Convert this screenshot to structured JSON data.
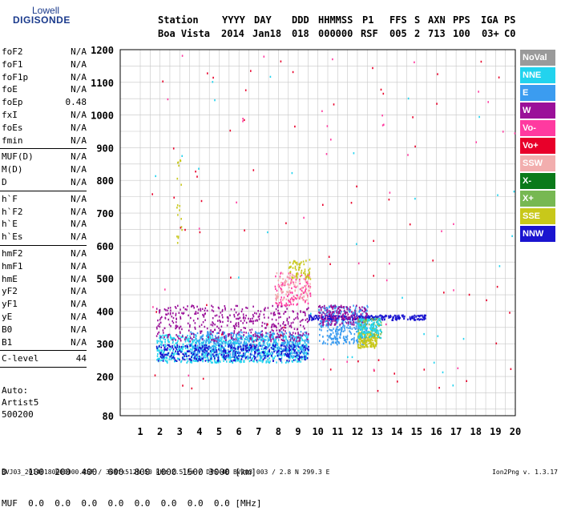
{
  "logo": {
    "line1": "Lowell",
    "line2": "DIGISONDE"
  },
  "header": {
    "labels": [
      "Station",
      "YYYY",
      "DAY",
      "DDD",
      "HHMMSS",
      "P1",
      "FFS",
      "S",
      "AXN",
      "PPS",
      "IGA",
      "PS"
    ],
    "values": [
      "Boa Vista",
      "2014",
      "Jan18",
      "018",
      "000000",
      "RSF",
      "005",
      "2",
      "713",
      "100",
      "03+",
      "C0"
    ]
  },
  "params_groups": [
    [
      [
        "foF2",
        "N/A"
      ],
      [
        "foF1",
        "N/A"
      ],
      [
        "foF1p",
        "N/A"
      ],
      [
        "foE",
        "N/A"
      ],
      [
        "foEp",
        "0.48"
      ],
      [
        "fxI",
        "N/A"
      ],
      [
        "foEs",
        "N/A"
      ],
      [
        "fmin",
        "N/A"
      ]
    ],
    [
      [
        "MUF(D)",
        "N/A"
      ],
      [
        "M(D)",
        "N/A"
      ],
      [
        "D",
        "N/A"
      ]
    ],
    [
      [
        "h`F",
        "N/A"
      ],
      [
        "h`F2",
        "N/A"
      ],
      [
        "h`E",
        "N/A"
      ],
      [
        "h`Es",
        "N/A"
      ]
    ],
    [
      [
        "hmF2",
        "N/A"
      ],
      [
        "hmF1",
        "N/A"
      ],
      [
        "hmE",
        "N/A"
      ],
      [
        "yF2",
        "N/A"
      ],
      [
        "yF1",
        "N/A"
      ],
      [
        "yE",
        "N/A"
      ],
      [
        "B0",
        "N/A"
      ],
      [
        "B1",
        "N/A"
      ]
    ],
    [
      [
        "C-level",
        "44"
      ]
    ]
  ],
  "auto": {
    "line1": "Auto:",
    "line2": "Artist5",
    "line3": "500200"
  },
  "legend": [
    {
      "label": "NoVal",
      "color": "#9a9a9a"
    },
    {
      "label": "NNE",
      "color": "#22d3ee"
    },
    {
      "label": "E",
      "color": "#3b9cf0"
    },
    {
      "label": "W",
      "color": "#9b1099"
    },
    {
      "label": "Vo-",
      "color": "#ff3aa0"
    },
    {
      "label": "Vo+",
      "color": "#e8002a"
    },
    {
      "label": "SSW",
      "color": "#f2aeae"
    },
    {
      "label": "X-",
      "color": "#0a7a1a"
    },
    {
      "label": "X+",
      "color": "#77b852"
    },
    {
      "label": "SSE",
      "color": "#c8c81a"
    },
    {
      "label": "NNW",
      "color": "#1a14d0"
    }
  ],
  "bottom": {
    "d_row": "D    100  200  400  600  800 1000 1500 3000 [km]",
    "muf_row": "MUF  0.0  0.0  0.0  0.0  0.0  0.0  0.0  0.0 [MHz]"
  },
  "footer": {
    "left": "BVJ03_20140180000000.RSF / 384fx512h 50 kHz 2.5 km / DPS-4D BVJ03 003 / 2.8 N 299.3 E",
    "right": "Ion2Png v. 1.3.17"
  },
  "chart_data": {
    "type": "scatter",
    "xlabel": "",
    "ylabel": "",
    "x_ticks": [
      1,
      2,
      3,
      4,
      5,
      6,
      7,
      8,
      9,
      10,
      11,
      12,
      13,
      14,
      15,
      16,
      17,
      18,
      19,
      20
    ],
    "y_ticks": [
      80,
      200,
      300,
      400,
      500,
      600,
      700,
      800,
      900,
      1000,
      1100,
      1200
    ],
    "xlim": [
      1,
      20
    ],
    "ylim": [
      80,
      1200
    ],
    "clusters": [
      {
        "series": "NNE",
        "x": [
          1.8,
          9.5
        ],
        "y": [
          245,
          330
        ],
        "n": 900
      },
      {
        "series": "E",
        "x": [
          3.5,
          9.5
        ],
        "y": [
          260,
          340
        ],
        "n": 500
      },
      {
        "series": "NNW",
        "x": [
          1.8,
          9.5
        ],
        "y": [
          250,
          300
        ],
        "n": 350
      },
      {
        "series": "W",
        "x": [
          1.8,
          9.5
        ],
        "y": [
          310,
          420
        ],
        "n": 450
      },
      {
        "series": "E",
        "x": [
          10,
          12.5
        ],
        "y": [
          300,
          420
        ],
        "n": 350
      },
      {
        "series": "NNW",
        "x": [
          9.5,
          15.5
        ],
        "y": [
          375,
          390
        ],
        "n": 250
      },
      {
        "series": "W",
        "x": [
          10,
          12.5
        ],
        "y": [
          360,
          420
        ],
        "n": 180
      },
      {
        "series": "Vo-",
        "x": [
          7.8,
          9.6
        ],
        "y": [
          420,
          520
        ],
        "n": 120
      },
      {
        "series": "SSW",
        "x": [
          7.8,
          9.6
        ],
        "y": [
          430,
          520
        ],
        "n": 90
      },
      {
        "series": "SSE",
        "x": [
          8.5,
          9.6
        ],
        "y": [
          500,
          560
        ],
        "n": 60
      },
      {
        "series": "SSE",
        "x": [
          12,
          13
        ],
        "y": [
          290,
          340
        ],
        "n": 160
      },
      {
        "series": "X+",
        "x": [
          12,
          13.2
        ],
        "y": [
          320,
          380
        ],
        "n": 90
      },
      {
        "series": "NNE",
        "x": [
          12,
          13.2
        ],
        "y": [
          320,
          380
        ],
        "n": 110
      },
      {
        "series": "Vo+",
        "x": [
          1.2,
          20
        ],
        "y": [
          150,
          1200
        ],
        "n": 70
      },
      {
        "series": "Vo-",
        "x": [
          1.2,
          20
        ],
        "y": [
          150,
          1200
        ],
        "n": 40
      },
      {
        "series": "SSE",
        "x": [
          2.8,
          3.1
        ],
        "y": [
          600,
          900
        ],
        "n": 20
      },
      {
        "series": "NNE",
        "x": [
          1.2,
          20
        ],
        "y": [
          150,
          1150
        ],
        "n": 30
      }
    ]
  }
}
